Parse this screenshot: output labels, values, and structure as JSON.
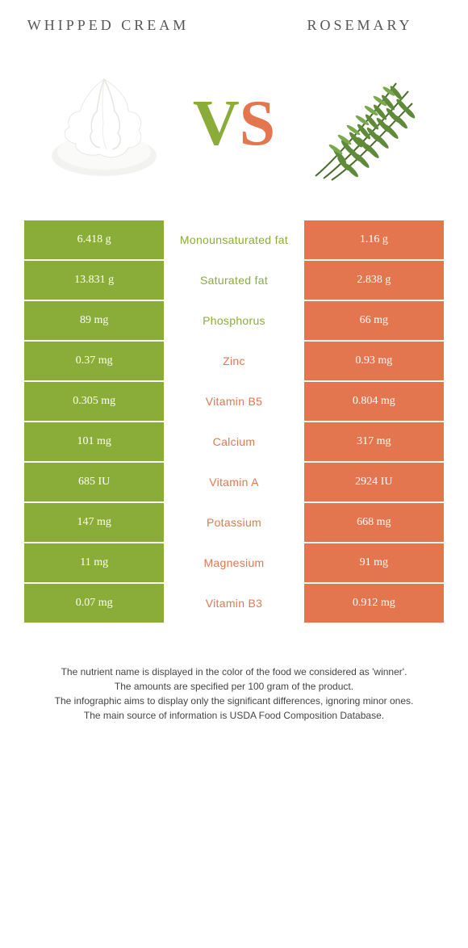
{
  "colors": {
    "left": "#8aad3a",
    "right": "#e3764f",
    "bg": "#ffffff"
  },
  "header": {
    "left_title": "Whipped cream",
    "right_title": "Rosemary",
    "vs_v": "V",
    "vs_s": "S"
  },
  "rows": [
    {
      "left": "6.418 g",
      "label": "Monounsaturated fat",
      "right": "1.16 g",
      "winner": "left"
    },
    {
      "left": "13.831 g",
      "label": "Saturated fat",
      "right": "2.838 g",
      "winner": "left"
    },
    {
      "left": "89 mg",
      "label": "Phosphorus",
      "right": "66 mg",
      "winner": "left"
    },
    {
      "left": "0.37 mg",
      "label": "Zinc",
      "right": "0.93 mg",
      "winner": "right"
    },
    {
      "left": "0.305 mg",
      "label": "Vitamin B5",
      "right": "0.804 mg",
      "winner": "right"
    },
    {
      "left": "101 mg",
      "label": "Calcium",
      "right": "317 mg",
      "winner": "right"
    },
    {
      "left": "685 IU",
      "label": "Vitamin A",
      "right": "2924 IU",
      "winner": "right"
    },
    {
      "left": "147 mg",
      "label": "Potassium",
      "right": "668 mg",
      "winner": "right"
    },
    {
      "left": "11 mg",
      "label": "Magnesium",
      "right": "91 mg",
      "winner": "right"
    },
    {
      "left": "0.07 mg",
      "label": "Vitamin B3",
      "right": "0.912 mg",
      "winner": "right"
    }
  ],
  "footer": {
    "line1": "The nutrient name is displayed in the color of the food we considered as 'winner'.",
    "line2": "The amounts are specified per 100 gram of the product.",
    "line3": "The infographic aims to display only the significant differences, ignoring minor ones.",
    "line4": "The main source of information is USDA Food Composition Database."
  }
}
